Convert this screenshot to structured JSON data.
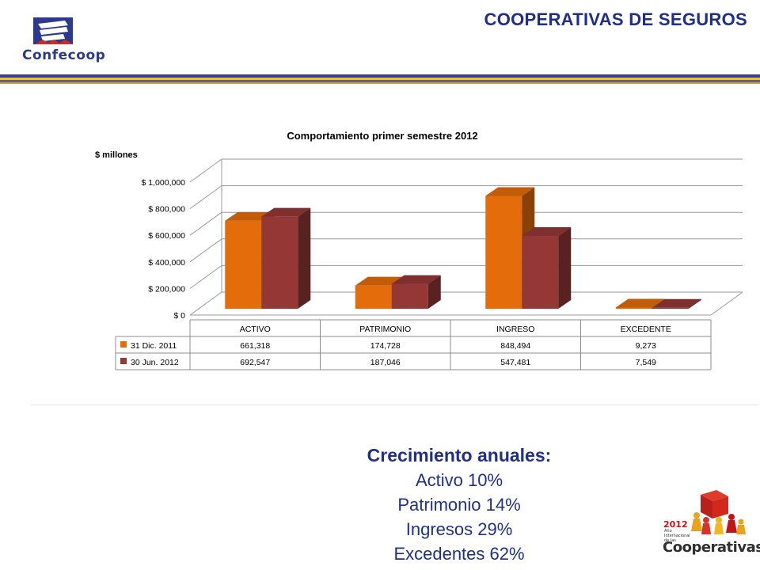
{
  "header": {
    "brand": "Confecoop",
    "title": "COOPERATIVAS DE SEGUROS"
  },
  "colors": {
    "series1": "#e46c0a",
    "series2": "#953735",
    "title_blue": "#1f2f8a"
  },
  "chart_data": {
    "type": "bar",
    "title": "Comportamiento primer semestre 2012",
    "ylabel": "$ millones",
    "xlabel": "",
    "ylim": [
      0,
      1000000
    ],
    "yticks": [
      "$ 0",
      "$ 200,000",
      "$ 400,000",
      "$ 600,000",
      "$ 800,000",
      "$ 1,000,000"
    ],
    "categories": [
      "ACTIVO",
      "PATRIMONIO",
      "INGRESO",
      "EXCEDENTE"
    ],
    "series": [
      {
        "name": "31 Dic. 2011",
        "values": [
          661318,
          174728,
          848494,
          9273
        ],
        "labels": [
          "661,318",
          "174,728",
          "848,494",
          "9,273"
        ]
      },
      {
        "name": "30 Jun. 2012",
        "values": [
          692547,
          187046,
          547481,
          7549
        ],
        "labels": [
          "692,547",
          "187,046",
          "547,481",
          "7,549"
        ]
      }
    ],
    "grid": true,
    "legend": "data-table"
  },
  "summary": {
    "heading": "Crecimiento anuales:",
    "lines": [
      "Activo 10%",
      "Patrimonio 14%",
      "Ingresos 29%",
      "Excedentes 62%"
    ]
  },
  "badge": {
    "year": "2012",
    "subtitle": "Año Internacional de las",
    "word": "Cooperativas"
  }
}
